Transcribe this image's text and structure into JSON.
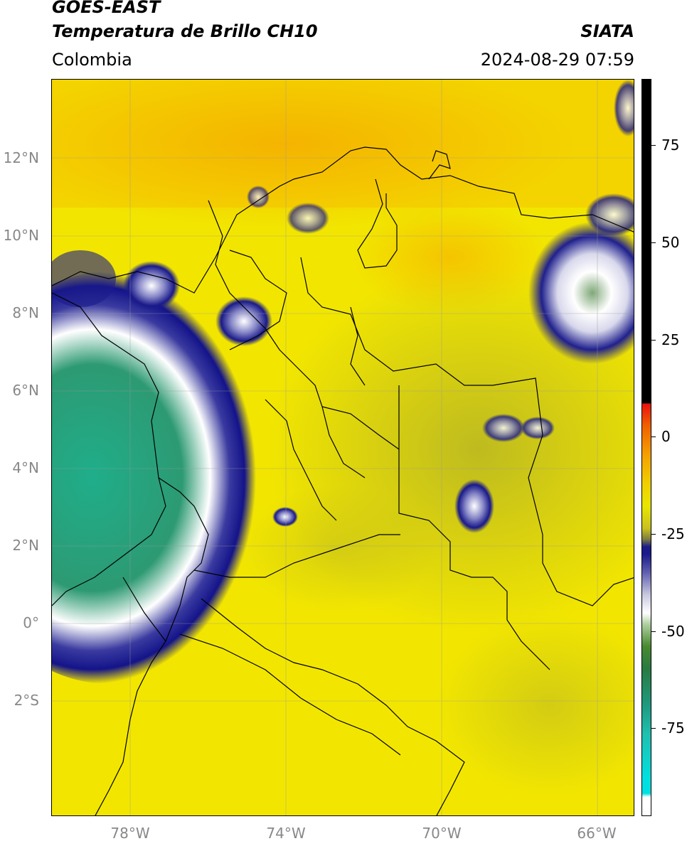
{
  "header": {
    "satellite": "GOES-EAST",
    "product": "Temperatura de Brillo CH10",
    "organization": "SIATA",
    "region": "Colombia",
    "datetime": "2024-08-29 07:59"
  },
  "map": {
    "lat_labels": [
      {
        "text": "12°N",
        "value": 12
      },
      {
        "text": "10°N",
        "value": 10
      },
      {
        "text": "8°N",
        "value": 8
      },
      {
        "text": "6°N",
        "value": 6
      },
      {
        "text": "4°N",
        "value": 4
      },
      {
        "text": "2°N",
        "value": 2
      },
      {
        "text": "0°",
        "value": 0
      },
      {
        "text": "2°S",
        "value": -2
      }
    ],
    "lon_labels": [
      {
        "text": "78°W",
        "value": -78
      },
      {
        "text": "74°W",
        "value": -74
      },
      {
        "text": "70°W",
        "value": -70
      },
      {
        "text": "66°W",
        "value": -66
      }
    ],
    "colors": {
      "background_warm": "#f2e600",
      "orange": "#f5b400",
      "olive": "#b8b420",
      "deep_blue": "#1a1a8a",
      "white": "#f4f4f4",
      "teal": "#2a9a7a",
      "border": "#000000"
    }
  },
  "colorbar": {
    "labels": [
      {
        "text": "75",
        "value": 75
      },
      {
        "text": "50",
        "value": 50
      },
      {
        "text": "25",
        "value": 25
      },
      {
        "text": "0",
        "value": 0
      },
      {
        "text": "-25",
        "value": -25
      },
      {
        "text": "-50",
        "value": -50
      },
      {
        "text": "-75",
        "value": -75
      }
    ],
    "range": [
      -95,
      90
    ]
  }
}
